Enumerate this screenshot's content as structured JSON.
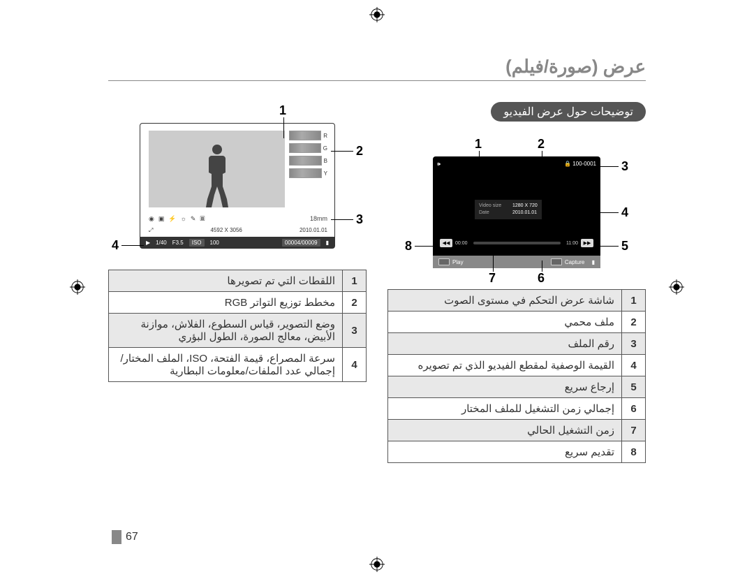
{
  "title": "عرض (صورة/فيلم)",
  "section_heading": "توضيحات حول عرض الفيديو",
  "page_number": "67",
  "video_display": {
    "file_no": "100-0001",
    "meta": {
      "size_label": "Video size",
      "size_value": "1280 X 720",
      "date_label": "Date",
      "date_value": "2010.01.01"
    },
    "time_start": "00:00",
    "time_end": "11:00",
    "play_label": "Play",
    "capture_label": "Capture"
  },
  "photo_display": {
    "rgb_labels": [
      "R",
      "G",
      "B",
      "Y"
    ],
    "focal": "18mm",
    "resolution": "4592 X 3056",
    "date": "2010.01.01",
    "shutter": "1/40",
    "aperture": "F3.5",
    "iso_label": "ISO",
    "iso_value": "100",
    "counter": "00004/00009"
  },
  "table_video": [
    {
      "n": "1",
      "t": "شاشة عرض التحكم في مستوى الصوت"
    },
    {
      "n": "2",
      "t": "ملف محمي"
    },
    {
      "n": "3",
      "t": "رقم الملف"
    },
    {
      "n": "4",
      "t": "القيمة الوصفية لمقطع الفيديو الذي تم تصويره"
    },
    {
      "n": "5",
      "t": "إرجاع سريع"
    },
    {
      "n": "6",
      "t": "إجمالي زمن التشغيل للملف المختار"
    },
    {
      "n": "7",
      "t": "زمن التشغيل الحالي"
    },
    {
      "n": "8",
      "t": "تقديم سريع"
    }
  ],
  "table_photo": [
    {
      "n": "1",
      "t": "اللقطات التي تم تصويرها"
    },
    {
      "n": "2",
      "t": "مخطط توزيع التواتر RGB"
    },
    {
      "n": "3",
      "t": "وضع التصوير، قياس السطوع، الفلاش، موازنة الأبيض، معالج الصورة، الطول البؤري"
    },
    {
      "n": "4",
      "t": "سرعة المصراع، قيمة الفتحة، ISO، الملف المختار/إجمالي عدد الملفات/معلومات البطارية"
    }
  ],
  "callouts_video": {
    "c1": "1",
    "c2": "2",
    "c3": "3",
    "c4": "4",
    "c5": "5",
    "c6": "6",
    "c7": "7",
    "c8": "8"
  },
  "callouts_photo": {
    "c1": "1",
    "c2": "2",
    "c3": "3",
    "c4": "4"
  }
}
